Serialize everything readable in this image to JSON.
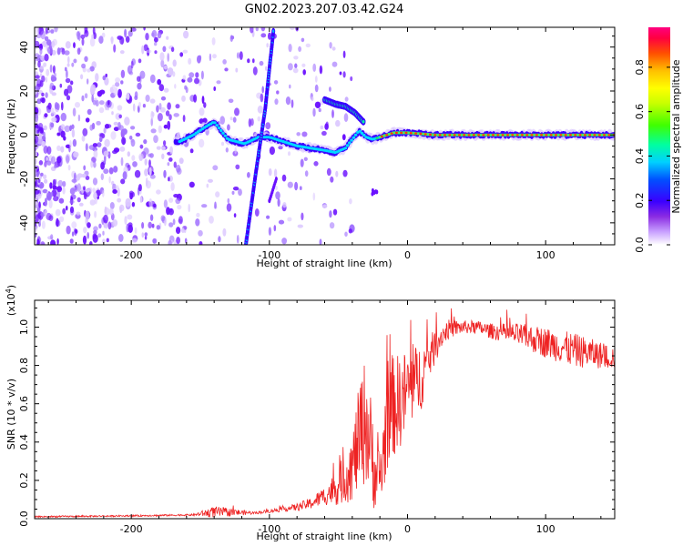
{
  "figure_title": "GN02.2023.207.03.42.G24",
  "chart_data": [
    {
      "type": "heatmap",
      "xlabel": "Height of straight line (km)",
      "ylabel": "Frequency (Hz)",
      "xlim": [
        -270,
        150
      ],
      "ylim": [
        -50,
        49
      ],
      "xticks": [
        -200,
        -100,
        0,
        100
      ],
      "yticks": [
        -40,
        -20,
        0,
        20,
        40
      ],
      "colorbar": {
        "label": "Normalized spectral amplitude",
        "range": [
          0,
          1
        ],
        "ticks": [
          "0.0",
          "0.2",
          "0.4",
          "0.6",
          "0.8"
        ],
        "colors": [
          "#ffffff",
          "#c8a0ff",
          "#8a2be2",
          "#3a00ff",
          "#0050ff",
          "#00d0ff",
          "#00ffa0",
          "#40ff00",
          "#c8ff00",
          "#ffff00",
          "#ffc000",
          "#ff5000",
          "#ff0040",
          "#ff0080"
        ]
      },
      "features": {
        "dominant_ridge": {
          "x": [
            -165,
            -155,
            -148,
            -140,
            -130,
            -118,
            -108,
            -100,
            -90,
            -80,
            -70,
            -60,
            -52,
            -45,
            -40,
            -35,
            -30,
            -25,
            -20,
            -15,
            -10,
            0,
            20,
            50,
            80,
            110,
            150
          ],
          "y": [
            -3,
            0,
            3,
            6,
            -2,
            -4,
            -1,
            -1,
            -3,
            -5,
            -6,
            -7,
            -8,
            -6,
            -2,
            2,
            -1,
            -2,
            -1,
            0,
            1,
            1,
            0,
            0,
            0,
            0,
            0
          ]
        },
        "upper_branch": {
          "x": [
            -60,
            -52,
            -45,
            -38,
            -32
          ],
          "y": [
            16,
            14,
            13,
            10,
            6
          ]
        },
        "diagonal_streak": {
          "x": [
            -117,
            -110,
            -103,
            -97
          ],
          "y": [
            -50,
            -18,
            12,
            48
          ]
        },
        "lower_streak": {
          "x": [
            -100,
            -95
          ],
          "y": [
            -30,
            -20
          ]
        },
        "small_blob": {
          "x": [
            -27,
            -22
          ],
          "y": [
            -24,
            -27
          ]
        }
      }
    },
    {
      "type": "line",
      "xlabel": "Height of straight line (km)",
      "ylabel": "SNR (10 * v/v)",
      "y_scale_label": "(x10",
      "y_scale_exp": "4",
      "y_scale_close": ")",
      "xlim": [
        -270,
        150
      ],
      "ylim": [
        0,
        1.14
      ],
      "xticks": [
        -200,
        -100,
        0,
        100
      ],
      "yticks": [
        "0.0",
        "0.2",
        "0.4",
        "0.6",
        "0.8",
        "1.0"
      ],
      "color": "#ee2222",
      "envelope": {
        "x": [
          -270,
          -200,
          -155,
          -140,
          -110,
          -100,
          -90,
          -80,
          -70,
          -60,
          -50,
          -40,
          -34,
          -30,
          -25,
          -22,
          -18,
          -15,
          -12,
          -8,
          -4,
          0,
          5,
          10,
          15,
          20,
          25,
          30,
          40,
          50,
          60,
          80,
          100,
          120,
          150
        ],
        "mean": [
          0.01,
          0.015,
          0.02,
          0.035,
          0.03,
          0.04,
          0.05,
          0.06,
          0.08,
          0.12,
          0.17,
          0.27,
          0.45,
          0.52,
          0.3,
          0.2,
          0.28,
          0.55,
          0.58,
          0.6,
          0.62,
          0.68,
          0.7,
          0.75,
          0.83,
          0.9,
          0.96,
          0.99,
          1.0,
          1.0,
          0.98,
          0.96,
          0.92,
          0.88,
          0.84
        ],
        "noise": [
          0.004,
          0.004,
          0.005,
          0.03,
          0.006,
          0.01,
          0.012,
          0.02,
          0.03,
          0.05,
          0.1,
          0.18,
          0.3,
          0.34,
          0.25,
          0.15,
          0.22,
          0.3,
          0.28,
          0.26,
          0.24,
          0.22,
          0.2,
          0.18,
          0.12,
          0.09,
          0.06,
          0.05,
          0.035,
          0.035,
          0.04,
          0.06,
          0.08,
          0.09,
          0.06
        ]
      }
    }
  ]
}
